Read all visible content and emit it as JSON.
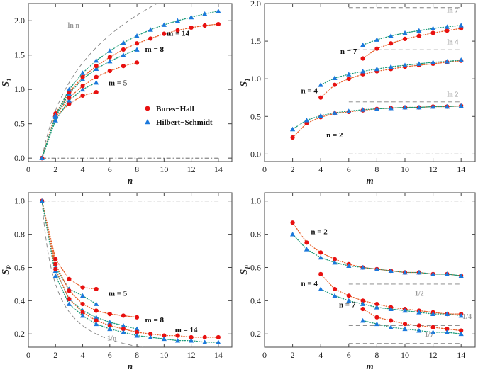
{
  "colors": {
    "bures_hall": "#e81010",
    "hilbert_schmidt": "#1a78dc",
    "dotted_line_bh": "#e8602a",
    "dotted_line_hs": "#1a9a78",
    "reference": "#808080",
    "frame": "#444444"
  },
  "legend": {
    "entries": [
      {
        "label": "Bures−Hall",
        "marker": "circle",
        "color": "#e81010"
      },
      {
        "label": "Hilbert−Schmidt",
        "marker": "triangle",
        "color": "#1a78dc"
      }
    ],
    "placement": "inside top-left panel, lower-middle"
  },
  "chart_data": [
    {
      "panel": "top-left",
      "type": "scatter",
      "xlabel": "n",
      "ylabel": "S_1",
      "xlim": [
        0,
        15
      ],
      "ylim": [
        -0.05,
        2.25
      ],
      "xticks": [
        0,
        2,
        4,
        6,
        8,
        10,
        12,
        14
      ],
      "yticks": [
        0.0,
        0.5,
        1.0,
        1.5,
        2.0
      ],
      "ytick_labels": [
        "0.0",
        "0.5",
        "1.0",
        "1.5",
        "2.0"
      ],
      "reference_curves": [
        {
          "label": "ln n",
          "kind": "ln_n",
          "x_from": 1,
          "x_to": 14,
          "style": "dashed"
        },
        {
          "label": "",
          "kind": "const",
          "value": 0.0,
          "x_from": 1,
          "x_to": 14.2,
          "style": "dash-dot"
        }
      ],
      "series": [
        {
          "name": "Bures−Hall",
          "group": "m = 5",
          "marker": "circle",
          "x": [
            1,
            2,
            3,
            4,
            5
          ],
          "y": [
            0.0,
            0.6,
            0.79,
            0.91,
            0.96
          ]
        },
        {
          "name": "Hilbert−Schmidt",
          "group": "m = 5",
          "marker": "triangle",
          "x": [
            1,
            2,
            3,
            4,
            5
          ],
          "y": [
            0.0,
            0.55,
            0.84,
            1.0,
            1.1
          ]
        },
        {
          "name": "Bures−Hall",
          "group": "m = 8",
          "marker": "circle",
          "x": [
            1,
            2,
            3,
            4,
            5,
            6,
            7,
            8
          ],
          "y": [
            0.0,
            0.62,
            0.88,
            1.05,
            1.18,
            1.27,
            1.34,
            1.39
          ]
        },
        {
          "name": "Hilbert−Schmidt",
          "group": "m = 8",
          "marker": "triangle",
          "x": [
            1,
            2,
            3,
            4,
            5,
            6,
            7,
            8
          ],
          "y": [
            0.0,
            0.6,
            0.94,
            1.15,
            1.3,
            1.41,
            1.5,
            1.58
          ]
        },
        {
          "name": "Bures−Hall",
          "group": "m = 14",
          "marker": "circle",
          "x": [
            1,
            2,
            3,
            4,
            5,
            6,
            7,
            8,
            9,
            10,
            11,
            12,
            13,
            14
          ],
          "y": [
            0.0,
            0.65,
            0.96,
            1.18,
            1.34,
            1.47,
            1.58,
            1.67,
            1.74,
            1.81,
            1.86,
            1.9,
            1.93,
            1.95
          ]
        },
        {
          "name": "Hilbert−Schmidt",
          "group": "m = 14",
          "marker": "triangle",
          "x": [
            1,
            2,
            3,
            4,
            5,
            6,
            7,
            8,
            9,
            10,
            11,
            12,
            13,
            14
          ],
          "y": [
            0.0,
            0.62,
            1.0,
            1.24,
            1.42,
            1.56,
            1.68,
            1.78,
            1.87,
            1.94,
            2.0,
            2.05,
            2.1,
            2.14
          ]
        }
      ],
      "annotations": [
        {
          "text": "ln n",
          "x": 2.9,
          "y": 1.9
        },
        {
          "text": "m = 14",
          "x": 10.2,
          "y": 1.78
        },
        {
          "text": "m = 8",
          "x": 8.6,
          "y": 1.55
        },
        {
          "text": "m = 5",
          "x": 5.9,
          "y": 1.06
        }
      ]
    },
    {
      "panel": "top-right",
      "type": "scatter",
      "xlabel": "m",
      "ylabel": "S_1",
      "xlim": [
        0,
        15
      ],
      "ylim": [
        -0.1,
        2.0
      ],
      "xticks": [
        0,
        2,
        4,
        6,
        8,
        10,
        12,
        14
      ],
      "yticks": [
        0.0,
        0.5,
        1.0,
        1.5,
        2.0
      ],
      "ytick_labels": [
        "0.0",
        "0.5",
        "1.0",
        "1.5",
        "2.0"
      ],
      "reference_curves": [
        {
          "label": "ln 7",
          "kind": "const",
          "value": 1.9459,
          "x_from": 6,
          "x_to": 14,
          "style": "dashed"
        },
        {
          "label": "ln 4",
          "kind": "const",
          "value": 1.3863,
          "x_from": 6,
          "x_to": 14,
          "style": "dashed"
        },
        {
          "label": "ln 2",
          "kind": "const",
          "value": 0.6931,
          "x_from": 6,
          "x_to": 14,
          "style": "dashed"
        },
        {
          "label": "",
          "kind": "const",
          "value": 0.0,
          "x_from": 6,
          "x_to": 14.2,
          "style": "dash-dot"
        }
      ],
      "series": [
        {
          "name": "Bures−Hall",
          "group": "n = 2",
          "marker": "circle",
          "x": [
            2,
            3,
            4,
            5,
            6,
            7,
            8,
            9,
            10,
            11,
            12,
            13,
            14
          ],
          "y": [
            0.22,
            0.41,
            0.49,
            0.54,
            0.56,
            0.58,
            0.6,
            0.61,
            0.62,
            0.62,
            0.63,
            0.63,
            0.64
          ]
        },
        {
          "name": "Hilbert−Schmidt",
          "group": "n = 2",
          "marker": "triangle",
          "x": [
            2,
            3,
            4,
            5,
            6,
            7,
            8,
            9,
            10,
            11,
            12,
            13,
            14
          ],
          "y": [
            0.33,
            0.45,
            0.51,
            0.55,
            0.57,
            0.59,
            0.6,
            0.61,
            0.62,
            0.62,
            0.63,
            0.63,
            0.64
          ]
        },
        {
          "name": "Bures−Hall",
          "group": "n = 4",
          "marker": "circle",
          "x": [
            4,
            5,
            6,
            7,
            8,
            9,
            10,
            11,
            12,
            13,
            14
          ],
          "y": [
            0.75,
            0.92,
            1.0,
            1.06,
            1.1,
            1.13,
            1.16,
            1.18,
            1.2,
            1.22,
            1.24
          ]
        },
        {
          "name": "Hilbert−Schmidt",
          "group": "n = 4",
          "marker": "triangle",
          "x": [
            4,
            5,
            6,
            7,
            8,
            9,
            10,
            11,
            12,
            13,
            14
          ],
          "y": [
            0.92,
            1.01,
            1.06,
            1.1,
            1.13,
            1.16,
            1.18,
            1.2,
            1.22,
            1.23,
            1.25
          ]
        },
        {
          "name": "Bures−Hall",
          "group": "n = 7",
          "marker": "circle",
          "x": [
            7,
            8,
            9,
            10,
            11,
            12,
            13,
            14
          ],
          "y": [
            1.27,
            1.4,
            1.47,
            1.53,
            1.57,
            1.61,
            1.64,
            1.67
          ]
        },
        {
          "name": "Hilbert−Schmidt",
          "group": "n = 7",
          "marker": "triangle",
          "x": [
            7,
            8,
            9,
            10,
            11,
            12,
            13,
            14
          ],
          "y": [
            1.45,
            1.52,
            1.57,
            1.61,
            1.64,
            1.67,
            1.69,
            1.71
          ]
        }
      ],
      "annotations": [
        {
          "text": "ln 7",
          "x": 13.0,
          "y": 1.88
        },
        {
          "text": "ln 4",
          "x": 13.0,
          "y": 1.46
        },
        {
          "text": "ln 2",
          "x": 13.0,
          "y": 0.76
        },
        {
          "text": "n = 7",
          "x": 5.4,
          "y": 1.33
        },
        {
          "text": "n = 4",
          "x": 2.6,
          "y": 0.81
        },
        {
          "text": "n = 2",
          "x": 4.4,
          "y": 0.22
        }
      ]
    },
    {
      "panel": "bottom-left",
      "type": "scatter",
      "xlabel": "n",
      "ylabel": "S_P",
      "xlim": [
        0,
        15
      ],
      "ylim": [
        0.12,
        1.05
      ],
      "xticks": [
        0,
        2,
        4,
        6,
        8,
        10,
        12,
        14
      ],
      "yticks": [
        0.2,
        0.4,
        0.6,
        0.8,
        1.0
      ],
      "ytick_labels": [
        "0.2",
        "0.4",
        "0.6",
        "0.8",
        "1.0"
      ],
      "reference_curves": [
        {
          "label": "1/n",
          "kind": "inv_n",
          "x_from": 1,
          "x_to": 14.2,
          "style": "dashed"
        },
        {
          "label": "",
          "kind": "const",
          "value": 1.0,
          "x_from": 1,
          "x_to": 14.2,
          "style": "dash-dot"
        }
      ],
      "series": [
        {
          "name": "Bures−Hall",
          "group": "m = 5",
          "marker": "circle",
          "x": [
            1,
            2,
            3,
            4,
            5
          ],
          "y": [
            1.0,
            0.65,
            0.53,
            0.48,
            0.47
          ]
        },
        {
          "name": "Hilbert−Schmidt",
          "group": "m = 5",
          "marker": "triangle",
          "x": [
            1,
            2,
            3,
            4,
            5
          ],
          "y": [
            1.0,
            0.6,
            0.47,
            0.43,
            0.38
          ]
        },
        {
          "name": "Bures−Hall",
          "group": "m = 8",
          "marker": "circle",
          "x": [
            1,
            2,
            3,
            4,
            5,
            6,
            7,
            8
          ],
          "y": [
            1.0,
            0.62,
            0.46,
            0.38,
            0.34,
            0.32,
            0.31,
            0.3
          ]
        },
        {
          "name": "Hilbert−Schmidt",
          "group": "m = 8",
          "marker": "triangle",
          "x": [
            1,
            2,
            3,
            4,
            5,
            6,
            7,
            8
          ],
          "y": [
            1.0,
            0.58,
            0.41,
            0.34,
            0.3,
            0.27,
            0.25,
            0.23
          ]
        },
        {
          "name": "Bures−Hall",
          "group": "m = 14",
          "marker": "circle",
          "x": [
            1,
            2,
            3,
            4,
            5,
            6,
            7,
            8,
            9,
            10,
            11,
            12,
            13,
            14
          ],
          "y": [
            1.0,
            0.59,
            0.41,
            0.33,
            0.28,
            0.25,
            0.23,
            0.21,
            0.2,
            0.19,
            0.19,
            0.18,
            0.18,
            0.18
          ]
        },
        {
          "name": "Hilbert−Schmidt",
          "group": "m = 14",
          "marker": "triangle",
          "x": [
            1,
            2,
            3,
            4,
            5,
            6,
            7,
            8,
            9,
            10,
            11,
            12,
            13,
            14
          ],
          "y": [
            1.0,
            0.55,
            0.38,
            0.31,
            0.26,
            0.23,
            0.21,
            0.19,
            0.18,
            0.17,
            0.16,
            0.16,
            0.15,
            0.15
          ]
        }
      ],
      "annotations": [
        {
          "text": "m = 5",
          "x": 5.9,
          "y": 0.43
        },
        {
          "text": "m = 8",
          "x": 8.6,
          "y": 0.27
        },
        {
          "text": "m = 14",
          "x": 10.8,
          "y": 0.21
        },
        {
          "text": "1/n",
          "x": 5.8,
          "y": 0.16
        }
      ]
    },
    {
      "panel": "bottom-right",
      "type": "scatter",
      "xlabel": "m",
      "ylabel": "S_P",
      "xlim": [
        0,
        15
      ],
      "ylim": [
        0.12,
        1.05
      ],
      "xticks": [
        0,
        2,
        4,
        6,
        8,
        10,
        12,
        14
      ],
      "yticks": [
        0.2,
        0.4,
        0.6,
        0.8,
        1.0
      ],
      "ytick_labels": [
        "0.2",
        "0.4",
        "0.6",
        "0.8",
        "1.0"
      ],
      "reference_curves": [
        {
          "label": "",
          "kind": "const",
          "value": 1.0,
          "x_from": 6,
          "x_to": 14.2,
          "style": "dash-dot"
        },
        {
          "label": "1/2",
          "kind": "const",
          "value": 0.5,
          "x_from": 6,
          "x_to": 14,
          "style": "dashed"
        },
        {
          "label": "1/4",
          "kind": "const",
          "value": 0.25,
          "x_from": 6,
          "x_to": 14,
          "style": "dashed"
        },
        {
          "label": "1/7",
          "kind": "const",
          "value": 0.142857,
          "x_from": 6,
          "x_to": 14,
          "style": "dashed"
        }
      ],
      "series": [
        {
          "name": "Bures−Hall",
          "group": "n = 2",
          "marker": "circle",
          "x": [
            2,
            3,
            4,
            5,
            6,
            7,
            8,
            9,
            10,
            11,
            12,
            13,
            14
          ],
          "y": [
            0.87,
            0.75,
            0.69,
            0.65,
            0.62,
            0.6,
            0.59,
            0.58,
            0.57,
            0.57,
            0.56,
            0.56,
            0.55
          ]
        },
        {
          "name": "Hilbert−Schmidt",
          "group": "n = 2",
          "marker": "triangle",
          "x": [
            2,
            3,
            4,
            5,
            6,
            7,
            8,
            9,
            10,
            11,
            12,
            13,
            14
          ],
          "y": [
            0.8,
            0.71,
            0.66,
            0.63,
            0.61,
            0.6,
            0.59,
            0.58,
            0.57,
            0.57,
            0.56,
            0.56,
            0.55
          ]
        },
        {
          "name": "Bures−Hall",
          "group": "n = 4",
          "marker": "circle",
          "x": [
            4,
            5,
            6,
            7,
            8,
            9,
            10,
            11,
            12,
            13,
            14
          ],
          "y": [
            0.56,
            0.47,
            0.43,
            0.4,
            0.38,
            0.36,
            0.35,
            0.34,
            0.33,
            0.32,
            0.32
          ]
        },
        {
          "name": "Hilbert−Schmidt",
          "group": "n = 4",
          "marker": "triangle",
          "x": [
            4,
            5,
            6,
            7,
            8,
            9,
            10,
            11,
            12,
            13,
            14
          ],
          "y": [
            0.47,
            0.43,
            0.4,
            0.38,
            0.36,
            0.35,
            0.34,
            0.33,
            0.32,
            0.32,
            0.31
          ]
        },
        {
          "name": "Bures−Hall",
          "group": "n = 7",
          "marker": "circle",
          "x": [
            7,
            8,
            9,
            10,
            11,
            12,
            13,
            14
          ],
          "y": [
            0.35,
            0.3,
            0.28,
            0.26,
            0.25,
            0.24,
            0.23,
            0.22
          ]
        },
        {
          "name": "Hilbert−Schmidt",
          "group": "n = 7",
          "marker": "triangle",
          "x": [
            7,
            8,
            9,
            10,
            11,
            12,
            13,
            14
          ],
          "y": [
            0.28,
            0.26,
            0.24,
            0.23,
            0.22,
            0.21,
            0.21,
            0.2
          ]
        }
      ],
      "annotations": [
        {
          "text": "n = 2",
          "x": 3.3,
          "y": 0.8
        },
        {
          "text": "n = 4",
          "x": 2.6,
          "y": 0.49
        },
        {
          "text": "n = 7",
          "x": 5.3,
          "y": 0.36
        },
        {
          "text": "1/2",
          "x": 10.7,
          "y": 0.43
        },
        {
          "text": "1/4",
          "x": 14.1,
          "y": 0.29
        },
        {
          "text": "1/7",
          "x": 11.4,
          "y": 0.185
        }
      ]
    }
  ]
}
